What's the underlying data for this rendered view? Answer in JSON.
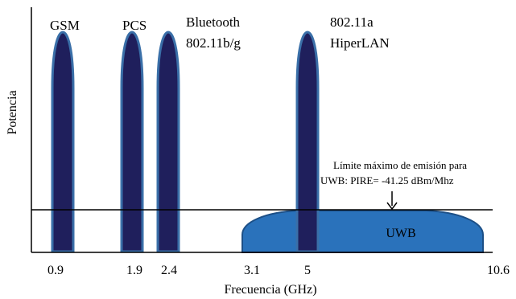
{
  "diagram": {
    "y_axis_label": "Potencia",
    "x_axis_label": "Frecuencia (GHz)",
    "tick_labels": [
      "0.9",
      "1.9",
      "2.4",
      "3.1",
      "5",
      "10.6"
    ],
    "bands": [
      {
        "label_line1": "GSM",
        "label_line2": ""
      },
      {
        "label_line1": "PCS",
        "label_line2": ""
      },
      {
        "label_line1": "Bluetooth",
        "label_line2": "802.11b/g"
      },
      {
        "label_line1": "802.11a",
        "label_line2": "HiperLAN"
      }
    ],
    "uwb_label": "UWB",
    "limit_annotation": {
      "line1": "Límite máximo de  emisión para",
      "line2": "UWB: PIRE= -41.25 dBm/Mhz"
    },
    "colors": {
      "narrowband_fill": "#1f1f5c",
      "narrowband_stroke": "#3a6fa8",
      "uwb_fill": "#2a72bb",
      "uwb_stroke": "#1c4f86",
      "axis": "#000000"
    }
  }
}
